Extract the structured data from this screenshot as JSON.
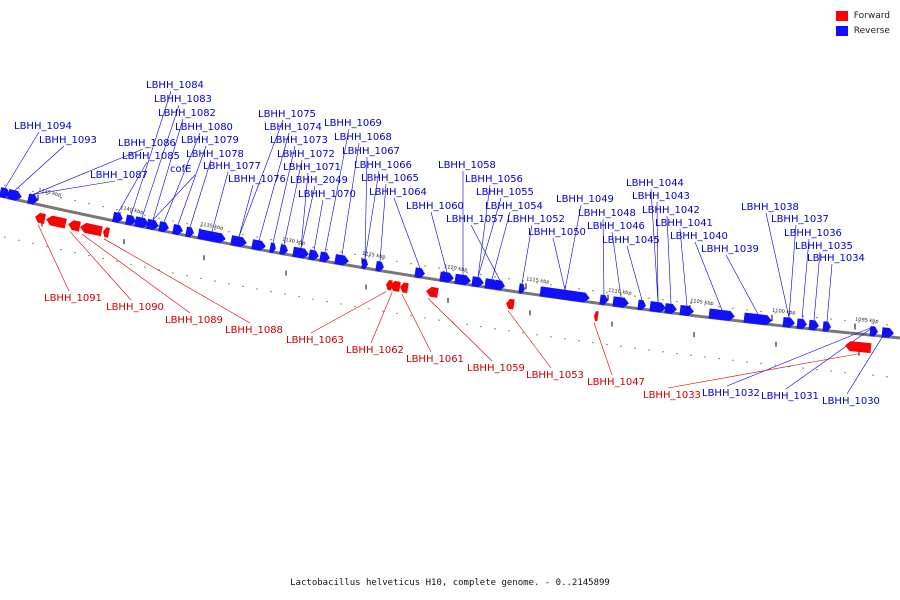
{
  "legend": {
    "forward_label": "Forward",
    "reverse_label": "Reverse",
    "forward_color": "#ff0000",
    "reverse_color": "#1010ff"
  },
  "caption": "Lactobacillus helveticus H10, complete genome. - 0..2145899",
  "colors": {
    "line_forward": "#cc0000",
    "line_reverse": "#0000cc",
    "backbone": "#777777"
  },
  "ticks": [
    "1145 kbp",
    "1140 kbp",
    "1135 kbp",
    "1130 kbp",
    "1125 kbp",
    "1120 kbp",
    "1115 kbp",
    "1110 kbp",
    "1105 kbp",
    "1100 kbp",
    "1095 kbp"
  ],
  "reverse_genes": [
    "LBHH_1094",
    "LBHH_1093",
    "LBHH_1087",
    "LBHH_1086",
    "LBHH_1085",
    "LBHH_1084",
    "LBHH_1083",
    "LBHH_1082",
    "cofE",
    "LBHH_1080",
    "LBHH_1079",
    "LBHH_1078",
    "LBHH_1077",
    "LBHH_1076",
    "LBHH_1075",
    "LBHH_1074",
    "LBHH_1073",
    "LBHH_1072",
    "LBHH_1071",
    "LBHH_2049",
    "LBHH_1070",
    "LBHH_1069",
    "LBHH_1068",
    "LBHH_1067",
    "LBHH_1066",
    "LBHH_1065",
    "LBHH_1064",
    "LBHH_1060",
    "LBHH_1058",
    "LBHH_1056",
    "LBHH_1055",
    "LBHH_1054",
    "LBHH_1057",
    "LBHH_1052",
    "LBHH_1050",
    "LBHH_1049",
    "LBHH_1048",
    "LBHH_1046",
    "LBHH_1045",
    "LBHH_1044",
    "LBHH_1043",
    "LBHH_1042",
    "LBHH_1041",
    "LBHH_1040",
    "LBHH_1039",
    "LBHH_1038",
    "LBHH_1037",
    "LBHH_1036",
    "LBHH_1035",
    "LBHH_1034",
    "LBHH_1032",
    "LBHH_1031",
    "LBHH_1030"
  ],
  "forward_genes": [
    "LBHH_1091",
    "LBHH_1090",
    "LBHH_1089",
    "LBHH_1088",
    "LBHH_1063",
    "LBHH_1062",
    "LBHH_1061",
    "LBHH_1059",
    "LBHH_1053",
    "LBHH_1047",
    "LBHH_1033"
  ]
}
